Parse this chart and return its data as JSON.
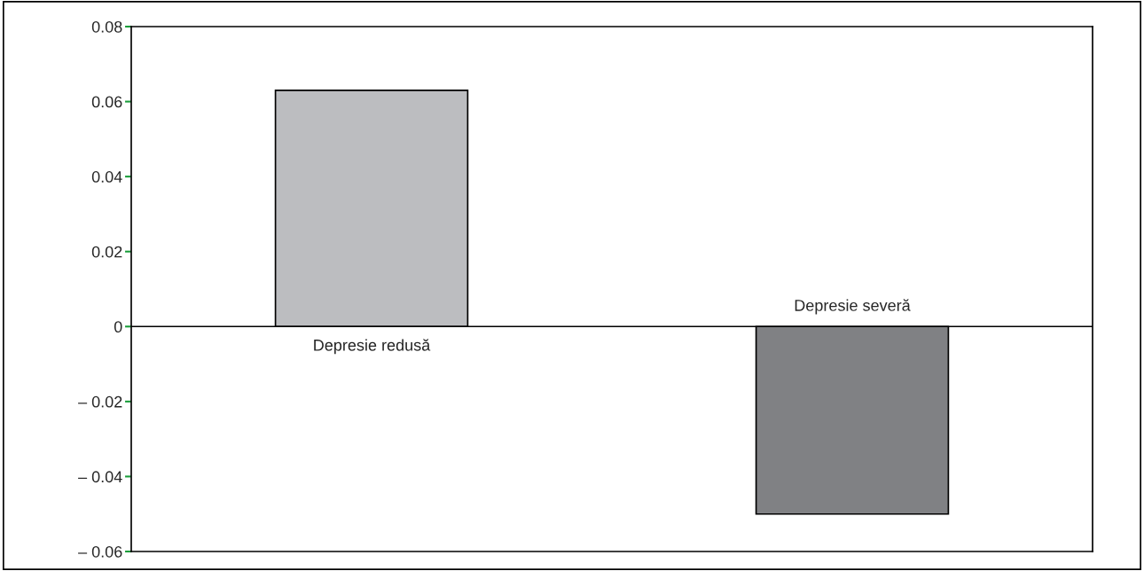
{
  "chart_data": {
    "type": "bar",
    "categories": [
      "Depresie redusă",
      "Depresie severă"
    ],
    "values": [
      0.063,
      -0.05
    ],
    "colors": [
      "#bcbdc0",
      "#808184"
    ],
    "ylim": [
      -0.06,
      0.08
    ],
    "yticks": [
      {
        "value": -0.06,
        "label": "– 0.06"
      },
      {
        "value": -0.04,
        "label": "– 0.04"
      },
      {
        "value": -0.02,
        "label": "– 0.02"
      },
      0,
      0.02,
      0.04,
      0.06,
      0.08
    ],
    "ref_lines": [
      {
        "axis": "y",
        "value": 0,
        "color": "#000000"
      }
    ],
    "legend": false
  }
}
